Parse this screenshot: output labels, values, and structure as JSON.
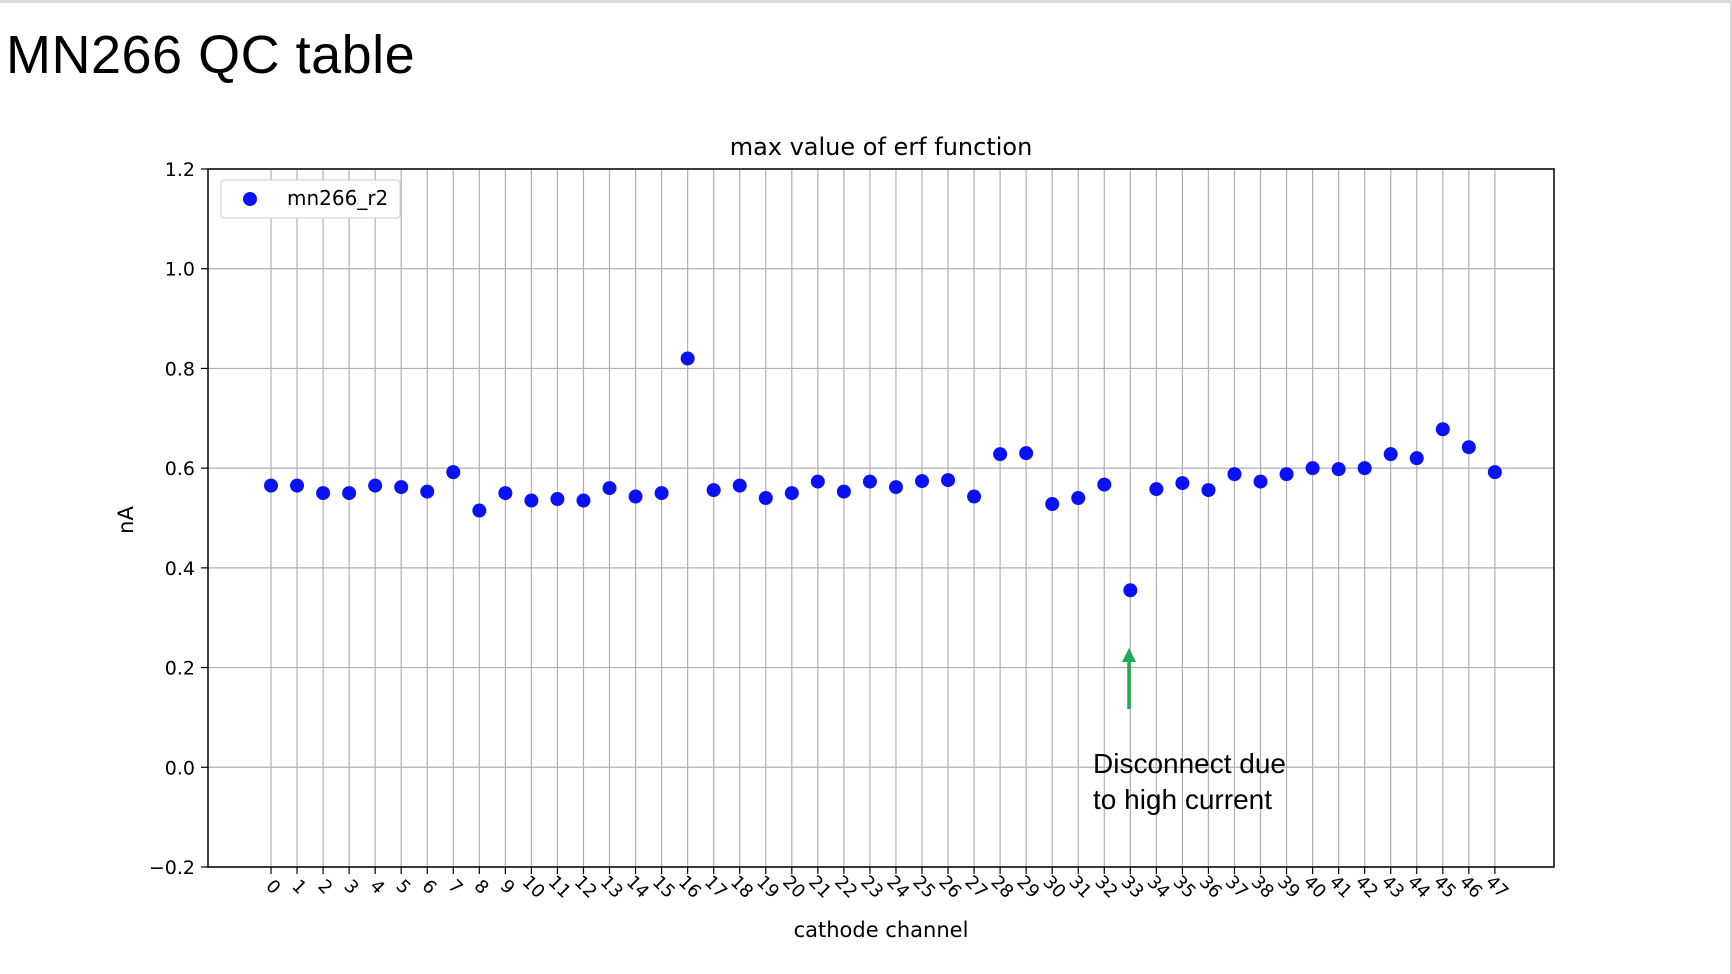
{
  "slide": {
    "title": "MN266 QC table"
  },
  "chart_data": {
    "type": "scatter",
    "title": "max value of erf function",
    "xlabel": "cathode channel",
    "ylabel": "nA",
    "ylim": [
      -0.2,
      1.2
    ],
    "yticks": [
      -0.2,
      0.0,
      0.2,
      0.4,
      0.6,
      0.8,
      1.0,
      1.2
    ],
    "ytick_labels": [
      "−0.2",
      "0.0",
      "0.2",
      "0.4",
      "0.6",
      "0.8",
      "1.0",
      "1.2"
    ],
    "x": [
      0,
      1,
      2,
      3,
      4,
      5,
      6,
      7,
      8,
      9,
      10,
      11,
      12,
      13,
      14,
      15,
      16,
      17,
      18,
      19,
      20,
      21,
      22,
      23,
      24,
      25,
      26,
      27,
      28,
      29,
      30,
      31,
      32,
      33,
      34,
      35,
      36,
      37,
      38,
      39,
      40,
      41,
      42,
      43,
      44,
      45,
      46,
      47
    ],
    "xtick_labels": [
      "0",
      "1",
      "2",
      "3",
      "4",
      "5",
      "6",
      "7",
      "8",
      "9",
      "10",
      "11",
      "12",
      "13",
      "14",
      "15",
      "16",
      "17",
      "18",
      "19",
      "20",
      "21",
      "22",
      "23",
      "24",
      "25",
      "26",
      "27",
      "28",
      "29",
      "30",
      "31",
      "32",
      "33",
      "34",
      "35",
      "36",
      "37",
      "38",
      "39",
      "40",
      "41",
      "42",
      "43",
      "44",
      "45",
      "46",
      "47"
    ],
    "series": [
      {
        "name": "mn266_r2",
        "color": "#0a12f5",
        "values": [
          0.565,
          0.565,
          0.55,
          0.55,
          0.565,
          0.562,
          0.553,
          0.592,
          0.515,
          0.55,
          0.535,
          0.538,
          0.535,
          0.56,
          0.543,
          0.55,
          0.82,
          0.556,
          0.565,
          0.54,
          0.55,
          0.573,
          0.553,
          0.573,
          0.562,
          0.574,
          0.576,
          0.543,
          0.628,
          0.63,
          0.528,
          0.54,
          0.567,
          0.355,
          0.558,
          0.57,
          0.556,
          0.588,
          0.573,
          0.588,
          0.6,
          0.598,
          0.6,
          0.628,
          0.62,
          0.678,
          0.642,
          0.592
        ]
      }
    ],
    "grid": true,
    "legend": {
      "position": "top-left",
      "label": "mn266_r2"
    },
    "annotation": {
      "lines": [
        "Disconnect due",
        "to high current"
      ],
      "points_to_channel": 33,
      "arrow_color": "#1faa59"
    }
  }
}
